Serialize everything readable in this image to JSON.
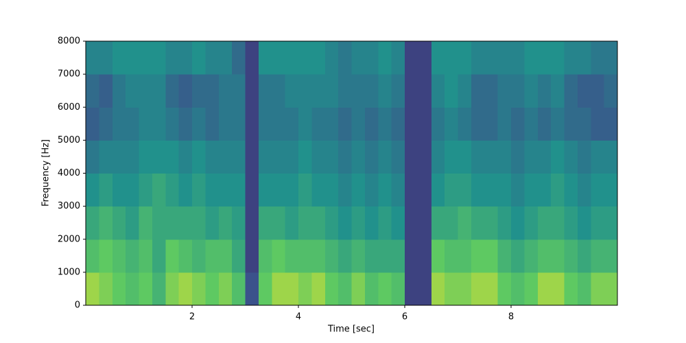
{
  "chart_data": {
    "type": "spectrogram",
    "xlabel": "Time [sec]",
    "ylabel": "Frequency [Hz]",
    "xlim": [
      0,
      10
    ],
    "xticks": [
      2,
      4,
      6,
      8
    ],
    "ylim": [
      0,
      8000
    ],
    "yticks": [
      0,
      1000,
      2000,
      3000,
      4000,
      5000,
      6000,
      7000,
      8000
    ],
    "colormap": "viridis",
    "time_bins": [
      0,
      0.25,
      0.5,
      0.75,
      1,
      1.25,
      1.5,
      1.75,
      2,
      2.25,
      2.5,
      2.75,
      3,
      3.25,
      3.5,
      3.75,
      4,
      4.25,
      4.5,
      4.75,
      5,
      5.25,
      5.5,
      5.75,
      6,
      6.25,
      6.5,
      6.75,
      7,
      7.25,
      7.5,
      7.75,
      8,
      8.25,
      8.5,
      8.75,
      9,
      9.25,
      9.5,
      9.75,
      10
    ],
    "freq_bins": [
      0,
      1000,
      2000,
      3000,
      4000,
      5000,
      6000,
      7000,
      8000
    ],
    "values": [
      [
        0.85,
        0.8,
        0.75,
        0.7,
        0.75,
        0.65,
        0.8,
        0.85,
        0.8,
        0.75,
        0.8,
        0.7,
        0.25,
        0.75,
        0.85,
        0.85,
        0.8,
        0.85,
        0.75,
        0.7,
        0.8,
        0.7,
        0.75,
        0.7,
        0.2,
        0.2,
        0.85,
        0.8,
        0.8,
        0.85,
        0.85,
        0.75,
        0.7,
        0.75,
        0.85,
        0.85,
        0.75,
        0.7,
        0.8,
        0.8
      ],
      [
        0.7,
        0.75,
        0.7,
        0.65,
        0.7,
        0.6,
        0.75,
        0.7,
        0.65,
        0.7,
        0.7,
        0.6,
        0.2,
        0.7,
        0.75,
        0.7,
        0.7,
        0.7,
        0.65,
        0.6,
        0.65,
        0.6,
        0.6,
        0.6,
        0.2,
        0.2,
        0.75,
        0.7,
        0.7,
        0.75,
        0.75,
        0.65,
        0.6,
        0.65,
        0.7,
        0.7,
        0.65,
        0.6,
        0.65,
        0.65
      ],
      [
        0.6,
        0.65,
        0.6,
        0.55,
        0.65,
        0.6,
        0.6,
        0.6,
        0.6,
        0.55,
        0.6,
        0.55,
        0.2,
        0.6,
        0.6,
        0.55,
        0.6,
        0.6,
        0.55,
        0.5,
        0.55,
        0.5,
        0.55,
        0.5,
        0.2,
        0.2,
        0.6,
        0.6,
        0.65,
        0.6,
        0.6,
        0.55,
        0.5,
        0.55,
        0.6,
        0.6,
        0.55,
        0.5,
        0.55,
        0.55
      ],
      [
        0.5,
        0.55,
        0.5,
        0.5,
        0.55,
        0.6,
        0.55,
        0.5,
        0.55,
        0.5,
        0.5,
        0.5,
        0.2,
        0.5,
        0.5,
        0.5,
        0.55,
        0.5,
        0.5,
        0.45,
        0.5,
        0.45,
        0.5,
        0.45,
        0.2,
        0.2,
        0.5,
        0.55,
        0.55,
        0.5,
        0.5,
        0.5,
        0.45,
        0.5,
        0.5,
        0.55,
        0.5,
        0.45,
        0.5,
        0.5
      ],
      [
        0.4,
        0.45,
        0.45,
        0.45,
        0.5,
        0.5,
        0.5,
        0.45,
        0.5,
        0.45,
        0.45,
        0.45,
        0.2,
        0.45,
        0.45,
        0.45,
        0.5,
        0.45,
        0.45,
        0.4,
        0.45,
        0.4,
        0.45,
        0.4,
        0.2,
        0.2,
        0.45,
        0.5,
        0.5,
        0.45,
        0.45,
        0.45,
        0.4,
        0.45,
        0.45,
        0.5,
        0.45,
        0.4,
        0.45,
        0.45
      ],
      [
        0.3,
        0.35,
        0.4,
        0.4,
        0.45,
        0.45,
        0.4,
        0.35,
        0.4,
        0.35,
        0.4,
        0.4,
        0.2,
        0.4,
        0.4,
        0.4,
        0.45,
        0.4,
        0.4,
        0.35,
        0.4,
        0.35,
        0.4,
        0.35,
        0.2,
        0.2,
        0.4,
        0.45,
        0.4,
        0.35,
        0.35,
        0.4,
        0.35,
        0.4,
        0.35,
        0.4,
        0.35,
        0.35,
        0.3,
        0.3
      ],
      [
        0.35,
        0.3,
        0.4,
        0.45,
        0.45,
        0.45,
        0.35,
        0.3,
        0.35,
        0.35,
        0.4,
        0.4,
        0.2,
        0.4,
        0.4,
        0.45,
        0.45,
        0.45,
        0.45,
        0.4,
        0.4,
        0.4,
        0.45,
        0.4,
        0.2,
        0.2,
        0.45,
        0.5,
        0.45,
        0.35,
        0.35,
        0.4,
        0.4,
        0.45,
        0.4,
        0.45,
        0.35,
        0.3,
        0.3,
        0.35
      ],
      [
        0.45,
        0.45,
        0.5,
        0.5,
        0.5,
        0.5,
        0.45,
        0.45,
        0.5,
        0.45,
        0.45,
        0.35,
        0.2,
        0.5,
        0.5,
        0.5,
        0.5,
        0.5,
        0.45,
        0.4,
        0.45,
        0.45,
        0.5,
        0.45,
        0.2,
        0.2,
        0.5,
        0.5,
        0.5,
        0.45,
        0.45,
        0.45,
        0.45,
        0.5,
        0.5,
        0.5,
        0.45,
        0.45,
        0.4,
        0.4
      ]
    ]
  }
}
